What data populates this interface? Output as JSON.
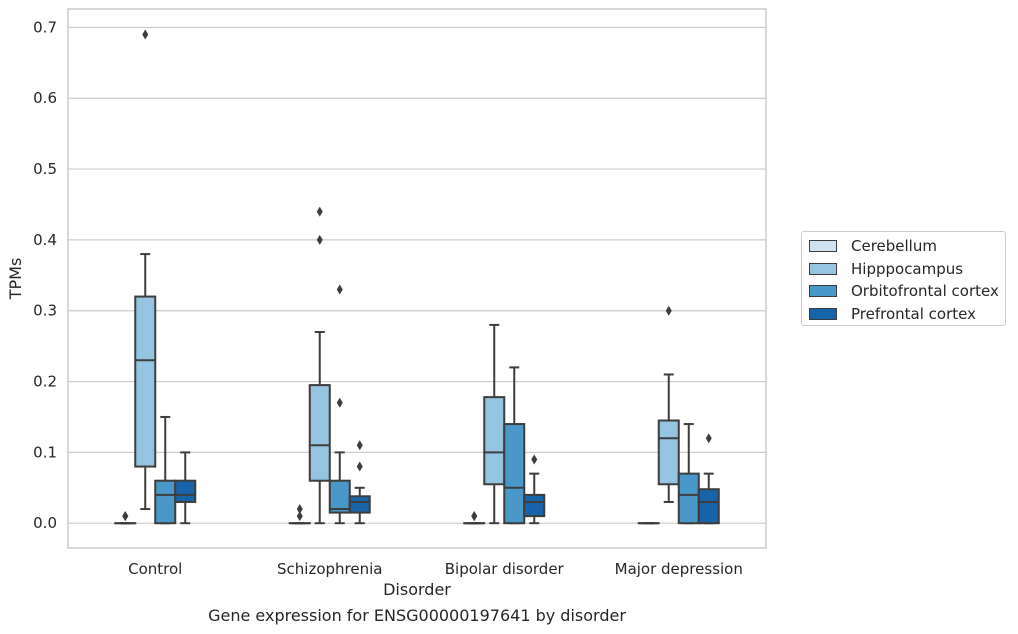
{
  "chart_data": {
    "type": "box",
    "xlabel": "Disorder",
    "ylabel": "TPMs",
    "caption": "Gene expression for ENSG00000197641 by disorder",
    "ylim": [
      -0.035,
      0.726
    ],
    "yticks": [
      0.0,
      0.1,
      0.2,
      0.3,
      0.4,
      0.5,
      0.6,
      0.7
    ],
    "ytick_labels": [
      "0.0",
      "0.1",
      "0.2",
      "0.3",
      "0.4",
      "0.5",
      "0.6",
      "0.7"
    ],
    "grid": "horizontal",
    "legend_position": "right",
    "categories": [
      "Control",
      "Schizophrenia",
      "Bipolar disorder",
      "Major depression"
    ],
    "series": [
      {
        "name": "Cerebellum",
        "color": "#d0e1f2",
        "boxes": [
          {
            "q1": 0.0,
            "median": 0.0,
            "q3": 0.0,
            "whisker_low": 0.0,
            "whisker_high": 0.0,
            "outliers": [
              0.01,
              0.01
            ]
          },
          {
            "q1": 0.0,
            "median": 0.0,
            "q3": 0.0,
            "whisker_low": 0.0,
            "whisker_high": 0.0,
            "outliers": [
              0.01,
              0.02
            ]
          },
          {
            "q1": 0.0,
            "median": 0.0,
            "q3": 0.0,
            "whisker_low": 0.0,
            "whisker_high": 0.0,
            "outliers": [
              0.01,
              0.01
            ]
          },
          {
            "q1": 0.0,
            "median": 0.0,
            "q3": 0.0,
            "whisker_low": 0.0,
            "whisker_high": 0.0,
            "outliers": []
          }
        ]
      },
      {
        "name": "Hipppocampus",
        "color": "#94c4df",
        "boxes": [
          {
            "q1": 0.08,
            "median": 0.23,
            "q3": 0.32,
            "whisker_low": 0.02,
            "whisker_high": 0.38,
            "outliers": [
              0.69
            ]
          },
          {
            "q1": 0.06,
            "median": 0.11,
            "q3": 0.195,
            "whisker_low": 0.0,
            "whisker_high": 0.27,
            "outliers": [
              0.4,
              0.44
            ]
          },
          {
            "q1": 0.055,
            "median": 0.1,
            "q3": 0.178,
            "whisker_low": 0.0,
            "whisker_high": 0.28,
            "outliers": []
          },
          {
            "q1": 0.055,
            "median": 0.12,
            "q3": 0.145,
            "whisker_low": 0.03,
            "whisker_high": 0.21,
            "outliers": [
              0.3
            ]
          }
        ]
      },
      {
        "name": "Orbitofrontal cortex",
        "color": "#4a98c9",
        "boxes": [
          {
            "q1": 0.0,
            "median": 0.04,
            "q3": 0.06,
            "whisker_low": 0.0,
            "whisker_high": 0.15,
            "outliers": []
          },
          {
            "q1": 0.015,
            "median": 0.02,
            "q3": 0.06,
            "whisker_low": 0.0,
            "whisker_high": 0.1,
            "outliers": [
              0.17,
              0.33
            ]
          },
          {
            "q1": 0.0,
            "median": 0.05,
            "q3": 0.14,
            "whisker_low": 0.0,
            "whisker_high": 0.22,
            "outliers": []
          },
          {
            "q1": 0.0,
            "median": 0.04,
            "q3": 0.07,
            "whisker_low": 0.0,
            "whisker_high": 0.14,
            "outliers": []
          }
        ]
      },
      {
        "name": "Prefrontal cortex",
        "color": "#1764ab",
        "boxes": [
          {
            "q1": 0.03,
            "median": 0.04,
            "q3": 0.06,
            "whisker_low": 0.0,
            "whisker_high": 0.1,
            "outliers": []
          },
          {
            "q1": 0.015,
            "median": 0.03,
            "q3": 0.038,
            "whisker_low": 0.0,
            "whisker_high": 0.05,
            "outliers": [
              0.08,
              0.11
            ]
          },
          {
            "q1": 0.01,
            "median": 0.03,
            "q3": 0.04,
            "whisker_low": 0.0,
            "whisker_high": 0.07,
            "outliers": [
              0.09
            ]
          },
          {
            "q1": 0.0,
            "median": 0.03,
            "q3": 0.048,
            "whisker_low": 0.0,
            "whisker_high": 0.07,
            "outliers": [
              0.12
            ]
          }
        ]
      }
    ]
  }
}
